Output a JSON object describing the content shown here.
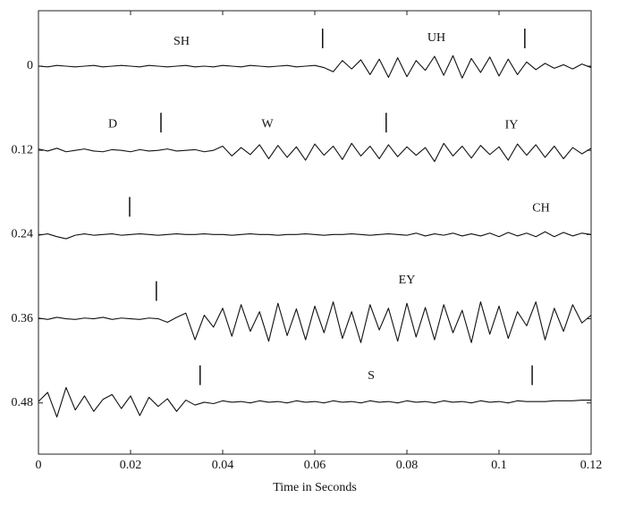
{
  "chart_data": {
    "type": "line",
    "x_label": "Time in Seconds",
    "xlim": [
      0,
      0.12
    ],
    "xticks": [
      0,
      0.02,
      0.04,
      0.06,
      0.08,
      0.1,
      0.12
    ],
    "ylim": [
      -0.079,
      0.553
    ],
    "y_inverted": true,
    "yticks": [
      0,
      0.12,
      0.24,
      0.36,
      0.48
    ],
    "color": "#111111",
    "x": [
      0,
      0.002,
      0.004,
      0.006,
      0.008,
      0.01,
      0.012,
      0.014,
      0.016,
      0.018,
      0.02,
      0.022,
      0.024,
      0.026,
      0.028,
      0.03,
      0.032,
      0.034,
      0.036,
      0.038,
      0.04,
      0.042,
      0.044,
      0.046,
      0.048,
      0.05,
      0.052,
      0.054,
      0.056,
      0.058,
      0.06,
      0.062,
      0.064,
      0.066,
      0.068,
      0.07,
      0.072,
      0.074,
      0.076,
      0.078,
      0.08,
      0.082,
      0.084,
      0.086,
      0.088,
      0.09,
      0.092,
      0.094,
      0.096,
      0.098,
      0.1,
      0.102,
      0.104,
      0.106,
      0.108,
      0.11,
      0.112,
      0.114,
      0.116,
      0.118,
      0.12
    ],
    "series": [
      {
        "labels": [
          "SH",
          "UH"
        ],
        "boundaries": [
          0.0617,
          0.1056
        ],
        "values": [
          0,
          0.001,
          -0.001,
          0,
          0.001,
          0,
          -0.001,
          0.001,
          0,
          -0.001,
          0,
          0.001,
          -0.001,
          0,
          0.001,
          0,
          -0.001,
          0.001,
          0,
          0.001,
          -0.001,
          0,
          0.001,
          -0.001,
          0,
          0.001,
          0,
          -0.001,
          0.001,
          0,
          -0.001,
          0.002,
          0.008,
          -0.008,
          0.004,
          -0.009,
          0.012,
          -0.01,
          0.016,
          -0.012,
          0.015,
          -0.008,
          0.006,
          -0.014,
          0.013,
          -0.015,
          0.017,
          -0.011,
          0.009,
          -0.013,
          0.014,
          -0.01,
          0.012,
          -0.006,
          0.005,
          -0.004,
          0.003,
          -0.002,
          0.004,
          -0.003,
          0.002
        ]
      },
      {
        "labels": [
          "D",
          "W",
          "IY"
        ],
        "boundaries": [
          0.0266,
          0.0755
        ],
        "values": [
          0.118,
          0.121,
          0.117,
          0.122,
          0.12,
          0.118,
          0.121,
          0.122,
          0.119,
          0.12,
          0.122,
          0.119,
          0.121,
          0.12,
          0.118,
          0.121,
          0.12,
          0.119,
          0.122,
          0.12,
          0.114,
          0.128,
          0.116,
          0.126,
          0.112,
          0.132,
          0.113,
          0.13,
          0.115,
          0.134,
          0.111,
          0.127,
          0.114,
          0.133,
          0.11,
          0.128,
          0.114,
          0.132,
          0.112,
          0.129,
          0.115,
          0.127,
          0.116,
          0.136,
          0.11,
          0.128,
          0.114,
          0.131,
          0.113,
          0.126,
          0.115,
          0.134,
          0.111,
          0.127,
          0.112,
          0.13,
          0.114,
          0.132,
          0.116,
          0.125,
          0.117
        ]
      },
      {
        "labels": [
          "CH"
        ],
        "boundaries": [
          0.0198
        ],
        "values": [
          0.241,
          0.239,
          0.243,
          0.246,
          0.241,
          0.239,
          0.241,
          0.24,
          0.239,
          0.241,
          0.24,
          0.239,
          0.24,
          0.241,
          0.24,
          0.239,
          0.24,
          0.24,
          0.239,
          0.24,
          0.24,
          0.241,
          0.24,
          0.239,
          0.24,
          0.24,
          0.241,
          0.24,
          0.24,
          0.239,
          0.24,
          0.241,
          0.24,
          0.24,
          0.239,
          0.24,
          0.241,
          0.24,
          0.239,
          0.24,
          0.241,
          0.238,
          0.242,
          0.239,
          0.241,
          0.238,
          0.242,
          0.239,
          0.242,
          0.238,
          0.243,
          0.237,
          0.242,
          0.238,
          0.243,
          0.236,
          0.243,
          0.237,
          0.242,
          0.238,
          0.24
        ]
      },
      {
        "labels": [
          "EY"
        ],
        "boundaries": [
          0.0256
        ],
        "values": [
          0.359,
          0.361,
          0.358,
          0.36,
          0.361,
          0.359,
          0.36,
          0.358,
          0.361,
          0.359,
          0.36,
          0.361,
          0.359,
          0.36,
          0.365,
          0.358,
          0.352,
          0.39,
          0.355,
          0.372,
          0.345,
          0.385,
          0.34,
          0.378,
          0.35,
          0.392,
          0.338,
          0.384,
          0.346,
          0.39,
          0.342,
          0.38,
          0.336,
          0.388,
          0.35,
          0.394,
          0.34,
          0.376,
          0.345,
          0.392,
          0.338,
          0.386,
          0.344,
          0.39,
          0.34,
          0.38,
          0.348,
          0.394,
          0.336,
          0.382,
          0.342,
          0.388,
          0.35,
          0.37,
          0.336,
          0.39,
          0.345,
          0.378,
          0.34,
          0.366,
          0.355
        ]
      },
      {
        "labels": [
          "S"
        ],
        "boundaries": [
          0.0351,
          0.1072
        ],
        "values": [
          0.478,
          0.465,
          0.5,
          0.458,
          0.49,
          0.47,
          0.492,
          0.475,
          0.468,
          0.488,
          0.47,
          0.498,
          0.472,
          0.485,
          0.474,
          0.492,
          0.476,
          0.483,
          0.479,
          0.481,
          0.477,
          0.479,
          0.478,
          0.48,
          0.477,
          0.479,
          0.478,
          0.48,
          0.477,
          0.479,
          0.478,
          0.48,
          0.477,
          0.479,
          0.478,
          0.48,
          0.477,
          0.479,
          0.478,
          0.48,
          0.477,
          0.479,
          0.478,
          0.48,
          0.477,
          0.479,
          0.478,
          0.48,
          0.477,
          0.479,
          0.478,
          0.48,
          0.477,
          0.478,
          0.478,
          0.478,
          0.477,
          0.477,
          0.477,
          0.476,
          0.476
        ]
      }
    ]
  }
}
